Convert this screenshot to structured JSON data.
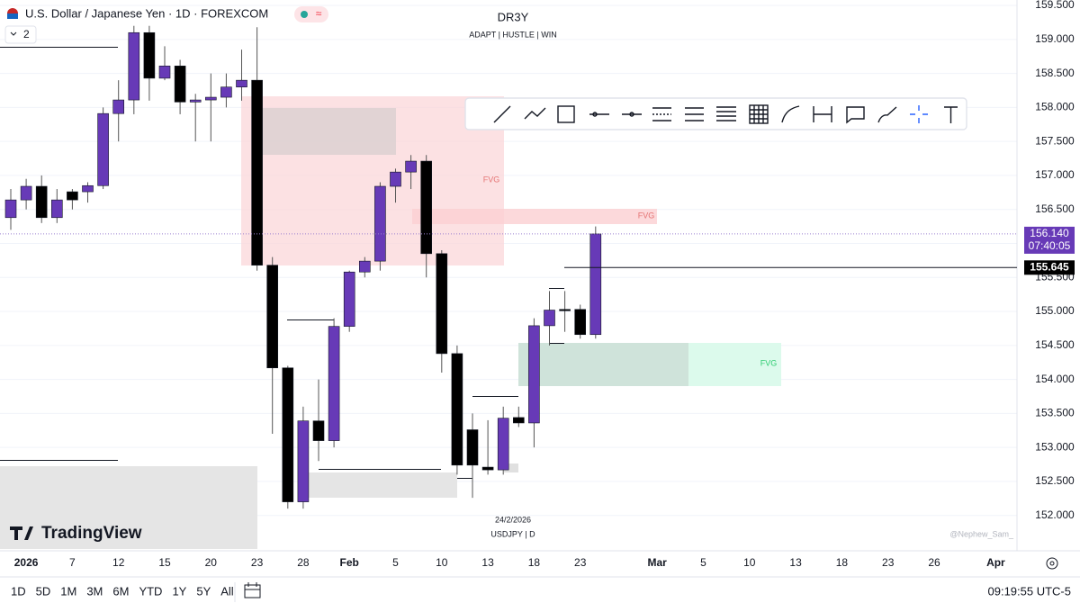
{
  "header": {
    "symbol": "U.S. Dollar / Japanese Yen · 1D · FOREXCOM",
    "badge": "≈",
    "indicators": "2"
  },
  "watermark": {
    "title": "DR3Y",
    "subtitle": "ADAPT | HUSTLE | WIN",
    "date": "24/2/2026",
    "ticker": "USDJPY | D",
    "author": "@Nephew_Sam_",
    "logo": "TradingView"
  },
  "chart_data": {
    "type": "candlestick",
    "categories": [
      null,
      "2026",
      null,
      null,
      "7",
      null,
      null,
      "12",
      null,
      null,
      "15",
      null,
      null,
      "20",
      null,
      null,
      "23",
      null,
      null,
      "28",
      null,
      null,
      "Feb",
      null,
      null,
      "5",
      null,
      null,
      "10",
      null,
      null,
      "13",
      null,
      null,
      "18",
      null,
      null,
      "23",
      null,
      null,
      null,
      null,
      "Mar",
      null,
      null,
      "5",
      null,
      null,
      "10",
      null,
      null,
      "13",
      null,
      null,
      "18",
      null,
      null,
      "23",
      null,
      null,
      "26",
      null,
      null,
      null,
      "Apr",
      null
    ],
    "open": [
      156.38,
      156.64,
      156.84,
      156.38,
      156.76,
      156.76,
      156.85,
      157.91,
      158.11,
      159.1,
      158.43,
      158.61,
      158.08,
      158.11,
      158.15,
      158.3,
      158.4,
      155.68,
      154.17,
      152.2,
      153.39,
      153.1,
      154.78,
      155.58,
      155.74,
      156.84,
      157.05,
      157.21,
      155.85,
      154.38,
      153.26,
      152.71,
      152.67,
      153.44,
      153.36,
      154.79,
      155.03,
      155.03,
      154.66,
      null,
      null,
      null,
      null,
      null,
      null,
      null,
      null,
      null,
      null,
      null,
      null,
      null,
      null,
      null,
      null,
      null,
      null,
      null,
      null,
      null,
      null,
      null,
      null,
      null,
      null,
      null
    ],
    "high": [
      156.8,
      156.95,
      157.0,
      156.8,
      156.8,
      156.9,
      158.0,
      158.4,
      159.2,
      159.2,
      158.9,
      158.7,
      158.2,
      158.5,
      158.5,
      158.85,
      159.18,
      155.8,
      154.2,
      153.6,
      154.0,
      154.9,
      155.6,
      155.8,
      156.9,
      157.1,
      157.3,
      157.3,
      155.9,
      154.5,
      153.5,
      153.4,
      153.6,
      153.6,
      154.9,
      155.3,
      155.3,
      155.1,
      156.25,
      null,
      null,
      null,
      null,
      null,
      null,
      null,
      null,
      null,
      null,
      null,
      null,
      null,
      null,
      null,
      null,
      null,
      null,
      null,
      null,
      null,
      null,
      null,
      null,
      null,
      null,
      null
    ],
    "low": [
      156.2,
      156.5,
      156.3,
      156.3,
      156.5,
      156.6,
      156.8,
      157.5,
      157.9,
      158.1,
      158.4,
      157.9,
      157.5,
      157.5,
      158.0,
      158.1,
      155.6,
      153.2,
      152.1,
      152.1,
      152.8,
      153.0,
      154.7,
      155.5,
      155.6,
      156.6,
      156.8,
      155.5,
      154.1,
      152.6,
      152.26,
      152.6,
      152.6,
      153.3,
      153.0,
      154.5,
      154.7,
      154.6,
      154.6,
      null,
      null,
      null,
      null,
      null,
      null,
      null,
      null,
      null,
      null,
      null,
      null,
      null,
      null,
      null,
      null,
      null,
      null,
      null,
      null,
      null,
      null,
      null,
      null,
      null,
      null,
      null
    ],
    "close": [
      156.64,
      156.84,
      156.38,
      156.64,
      156.64,
      156.85,
      157.91,
      158.11,
      159.1,
      158.43,
      158.61,
      158.08,
      158.11,
      158.15,
      158.3,
      158.4,
      155.68,
      154.17,
      152.2,
      153.39,
      153.1,
      154.78,
      155.58,
      155.74,
      156.84,
      157.05,
      157.21,
      155.85,
      154.38,
      152.74,
      152.74,
      152.67,
      153.43,
      153.36,
      154.79,
      155.02,
      155.02,
      154.66,
      156.14,
      null,
      null,
      null,
      null,
      null,
      null,
      null,
      null,
      null,
      null,
      null,
      null,
      null,
      null,
      null,
      null,
      null,
      null,
      null,
      null,
      null,
      null,
      null,
      null,
      null,
      null,
      null
    ],
    "up_color": "#673ab7",
    "down_color": "#000000",
    "ylim": [
      151.48,
      159.58
    ],
    "yticks": [
      {
        "value": 152.0,
        "label": "152.000"
      },
      {
        "value": 152.5,
        "label": "152.500"
      },
      {
        "value": 153.0,
        "label": "153.000"
      },
      {
        "value": 153.5,
        "label": "153.500"
      },
      {
        "value": 154.0,
        "label": "154.000"
      },
      {
        "value": 154.5,
        "label": "154.500"
      },
      {
        "value": 155.0,
        "label": "155.000"
      },
      {
        "value": 155.5,
        "label": "155.500"
      },
      {
        "value": 156.0,
        "label": "156.000"
      },
      {
        "value": 156.5,
        "label": "156.500"
      },
      {
        "value": 157.0,
        "label": "157.000"
      },
      {
        "value": 157.5,
        "label": "157.500"
      },
      {
        "value": 158.0,
        "label": "158.000"
      },
      {
        "value": 158.5,
        "label": "158.500"
      },
      {
        "value": 159.0,
        "label": "159.000"
      },
      {
        "value": 159.5,
        "label": "159.500"
      }
    ],
    "grid": true,
    "last_price": {
      "value": 156.14,
      "label": "156.140",
      "countdown": "07:40:05"
    },
    "level": 155.645,
    "annotations": [
      "FVG",
      "FVG",
      "FVG"
    ]
  },
  "bottom_bar": {
    "ranges": [
      "1D",
      "5D",
      "1M",
      "3M",
      "6M",
      "YTD",
      "1Y",
      "5Y",
      "All"
    ],
    "clock": "09:19:55 UTC-5"
  }
}
